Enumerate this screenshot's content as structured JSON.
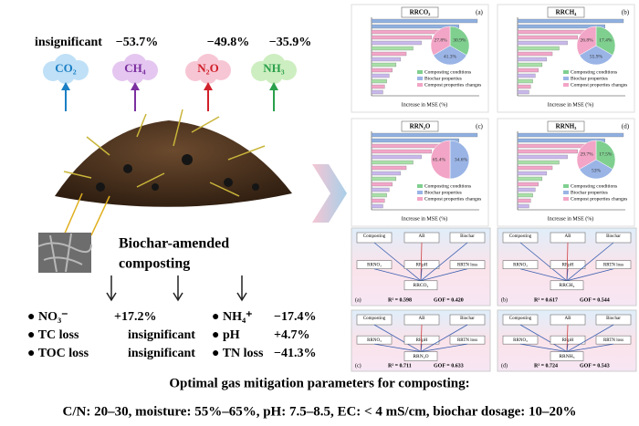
{
  "effects": [
    {
      "change": "insignificant",
      "gas": "CO₂"
    },
    {
      "change": "−53.7%",
      "gas": "CH₄"
    },
    {
      "change": "−49.8%",
      "gas": "N₂O"
    },
    {
      "change": "−35.9%",
      "gas": "NH₃"
    }
  ],
  "process": {
    "line1": "Biochar-amended",
    "line2": "composting"
  },
  "results_left": [
    [
      "● NO₃⁻",
      "+17.2%"
    ],
    [
      "● TC loss",
      "insignificant"
    ],
    [
      "● TOC loss",
      "insignificant"
    ]
  ],
  "results_right": [
    [
      "● NH₄⁺",
      "−17.4%"
    ],
    [
      "● pH",
      "+4.7%"
    ],
    [
      "● TN loss",
      "−41.3%"
    ]
  ],
  "rf_panels": [
    {
      "letter": "(a)",
      "title": "RRCO₂",
      "pie_labels": [
        "30.9%",
        "41.3%",
        "27.8%"
      ]
    },
    {
      "letter": "(b)",
      "title": "RRCH₄",
      "pie_labels": [
        "17.4%",
        "55.9%",
        "26.8%"
      ]
    },
    {
      "letter": "(c)",
      "title": "RRN₂O",
      "pie_labels": [
        "34.6%",
        "65.4%"
      ]
    },
    {
      "letter": "(d)",
      "title": "RRNH₃",
      "pie_labels": [
        "17.5%",
        "53%",
        "29.7%"
      ]
    }
  ],
  "rf_axis_label": "Increase in MSE (%)",
  "rf_legend": [
    "Composting conditions",
    "Biochar properties",
    "Compost properties changes"
  ],
  "sem_panels": [
    {
      "letter": "(a)",
      "target": "RRCO₂",
      "r2": "R² = 0.598",
      "gof": "GOF = 0.420"
    },
    {
      "letter": "(b)",
      "target": "RRCH₄",
      "r2": "R² = 0.617",
      "gof": "GOF = 0.544"
    },
    {
      "letter": "(c)",
      "target": "RRN₂O",
      "r2": "R² = 0.711",
      "gof": "GOF = 0.633"
    },
    {
      "letter": "(d)",
      "target": "RRNH₃",
      "r2": "R² = 0.724",
      "gof": "GOF = 0.543"
    }
  ],
  "sem_boxes": {
    "top": [
      "Composting",
      "AB",
      "Biochar"
    ],
    "middle": [
      "RRNO₃",
      "RRpH",
      "RRTN loss"
    ]
  },
  "footer": {
    "heading": "Optimal gas mitigation parameters for  composting:",
    "parameters": "C/N: 20–30, moisture: 55%–65%, pH: 7.5–8.5, EC: < 4 mS/cm, biochar dosage: 10–20%"
  }
}
